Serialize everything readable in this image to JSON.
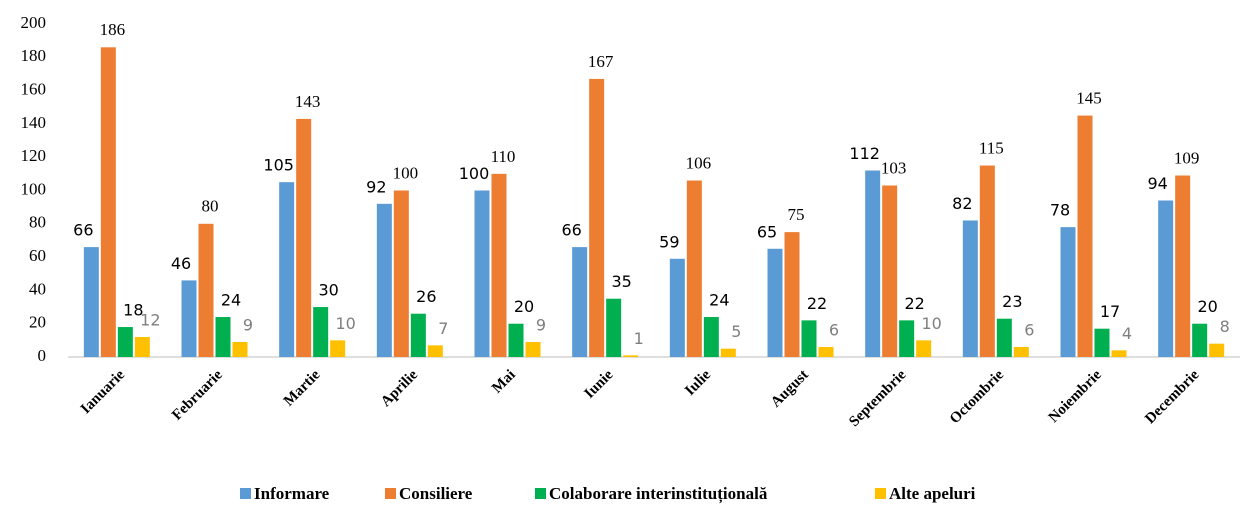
{
  "chart_data": {
    "type": "bar",
    "categories": [
      "Ianuarie",
      "Februarie",
      "Martie",
      "Aprilie",
      "Mai",
      "Iunie",
      "Iulie",
      "August",
      "Septembrie",
      "Octombrie",
      "Noiembrie",
      "Decembrie"
    ],
    "series": [
      {
        "name": "Informare",
        "color": "#5b9bd5",
        "values": [
          66,
          46,
          105,
          92,
          100,
          66,
          59,
          65,
          112,
          82,
          78,
          94
        ]
      },
      {
        "name": "Consiliere",
        "color": "#ed7d31",
        "values": [
          186,
          80,
          143,
          100,
          110,
          167,
          106,
          75,
          103,
          115,
          145,
          109
        ]
      },
      {
        "name": "Colaborare interinstituțională",
        "color": "#00b050",
        "values": [
          18,
          24,
          30,
          26,
          20,
          35,
          24,
          22,
          22,
          23,
          17,
          20
        ]
      },
      {
        "name": "Alte apeluri",
        "color": "#ffc000",
        "values": [
          12,
          9,
          10,
          7,
          9,
          1,
          5,
          6,
          10,
          6,
          4,
          8
        ]
      }
    ],
    "ylim": [
      0,
      200
    ],
    "yticks": [
      0,
      20,
      40,
      60,
      80,
      100,
      120,
      140,
      160,
      180,
      200
    ],
    "grid": false,
    "legend": "bottom"
  }
}
